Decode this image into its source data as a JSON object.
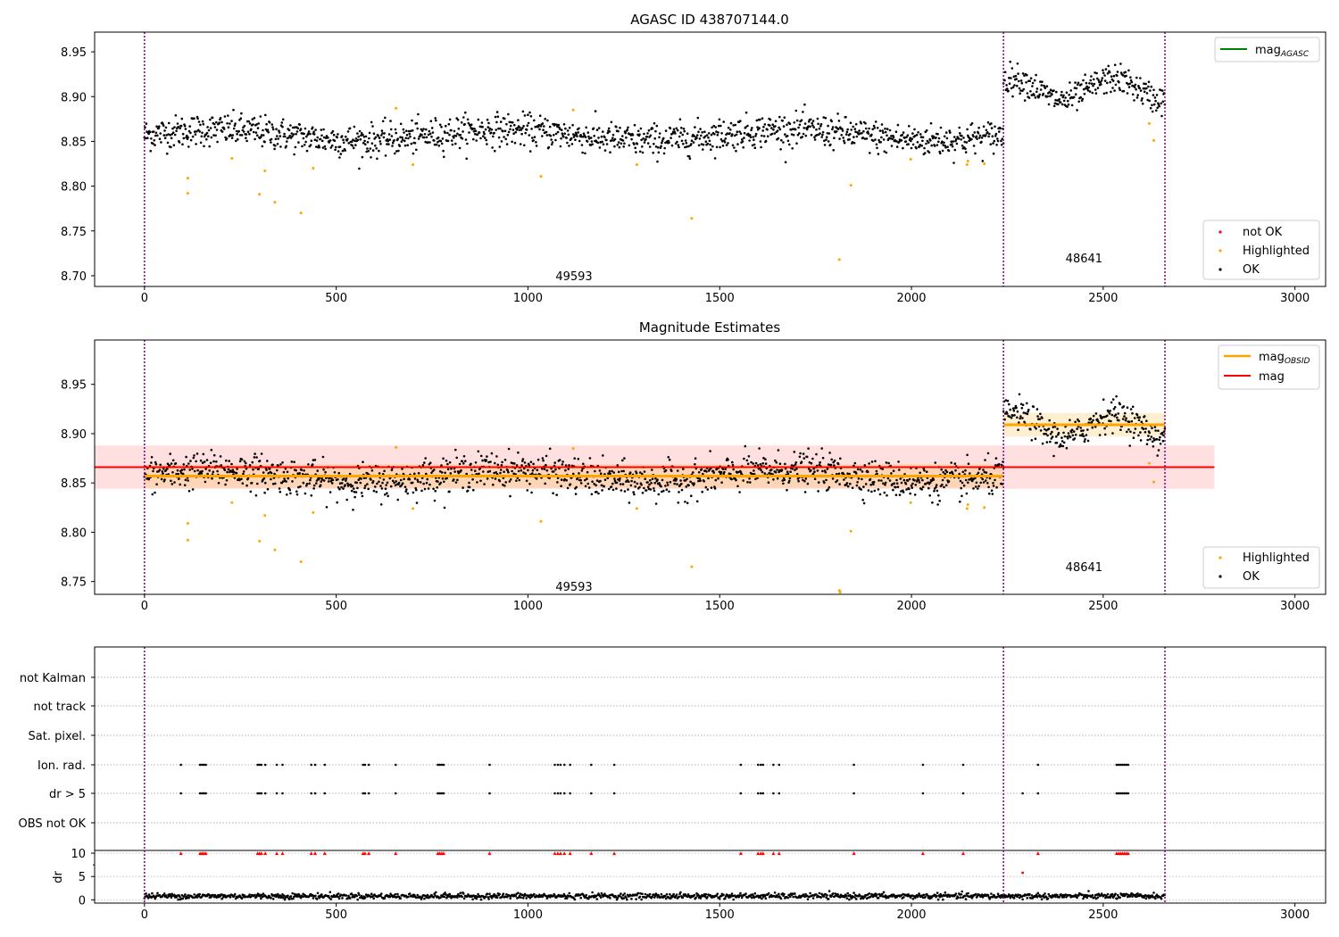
{
  "chart_data": [
    {
      "type": "scatter",
      "title": "AGASC ID 438707144.0",
      "xlim": [
        -130,
        3080
      ],
      "ylim": [
        8.688,
        8.972
      ],
      "xticks": [
        0,
        500,
        1000,
        1500,
        2000,
        2500,
        3000
      ],
      "yticks": [
        8.7,
        8.75,
        8.8,
        8.85,
        8.9,
        8.95
      ],
      "ytick_labels": [
        "8.70",
        "8.75",
        "8.80",
        "8.85",
        "8.90",
        "8.95"
      ],
      "obs_boundaries": [
        0,
        2240,
        2661
      ],
      "obs_labels": [
        {
          "text": "49593",
          "x": 1120,
          "y": 8.7
        },
        {
          "text": "48641",
          "x": 2450,
          "y": 8.72
        }
      ],
      "segments": [
        {
          "x_start": 0,
          "x_end": 2240,
          "mean": 8.857,
          "amp": 0.006,
          "noise": 0.009
        },
        {
          "x_start": 2240,
          "x_end": 2661,
          "mean": 8.908,
          "amp": 0.012,
          "noise": 0.008
        }
      ],
      "highlighted": [
        [
          113,
          8.809
        ],
        [
          113,
          8.792
        ],
        [
          228,
          8.831
        ],
        [
          300,
          8.791
        ],
        [
          314,
          8.817
        ],
        [
          340,
          8.782
        ],
        [
          408,
          8.77
        ],
        [
          440,
          8.82
        ],
        [
          656,
          8.887
        ],
        [
          700,
          8.824
        ],
        [
          1034,
          8.811
        ],
        [
          1118,
          8.885
        ],
        [
          1284,
          8.824
        ],
        [
          1427,
          8.764
        ],
        [
          1812,
          8.718
        ],
        [
          1842,
          8.801
        ],
        [
          1998,
          8.83
        ],
        [
          2145,
          8.824
        ],
        [
          2147,
          8.828
        ],
        [
          2190,
          8.825
        ],
        [
          2620,
          8.87
        ],
        [
          2632,
          8.851
        ]
      ],
      "legend_upper": [
        {
          "label": "mag",
          "sub": "AGASC",
          "color": "#008000"
        }
      ],
      "legend_lower": [
        {
          "label": "not OK",
          "color": "#ff0000"
        },
        {
          "label": "Highlighted",
          "color": "#ffa500"
        },
        {
          "label": "OK",
          "color": "#000000"
        }
      ]
    },
    {
      "type": "scatter",
      "title": "Magnitude Estimates",
      "xlim": [
        -130,
        3080
      ],
      "ylim": [
        8.737,
        8.995
      ],
      "xticks": [
        0,
        500,
        1000,
        1500,
        2000,
        2500,
        3000
      ],
      "yticks": [
        8.75,
        8.8,
        8.85,
        8.9,
        8.95
      ],
      "ytick_labels": [
        "8.75",
        "8.80",
        "8.85",
        "8.90",
        "8.95"
      ],
      "obs_boundaries": [
        0,
        2240,
        2661
      ],
      "obs_labels": [
        {
          "text": "49593",
          "x": 1120,
          "y": 8.745
        },
        {
          "text": "48641",
          "x": 2450,
          "y": 8.765
        }
      ],
      "mag": {
        "value": 8.866,
        "band": [
          8.844,
          8.888
        ],
        "x_range": [
          -130,
          2790
        ],
        "color": "#ff0000"
      },
      "mag_obsid": [
        {
          "x": [
            0,
            2240
          ],
          "value": 8.857,
          "band": [
            8.845,
            8.869
          ]
        },
        {
          "x": [
            2240,
            2661
          ],
          "value": 8.909,
          "band": [
            8.897,
            8.921
          ]
        }
      ],
      "highlighted": [
        [
          113,
          8.809
        ],
        [
          113,
          8.792
        ],
        [
          228,
          8.83
        ],
        [
          300,
          8.791
        ],
        [
          314,
          8.817
        ],
        [
          340,
          8.782
        ],
        [
          408,
          8.77
        ],
        [
          440,
          8.82
        ],
        [
          656,
          8.886
        ],
        [
          700,
          8.824
        ],
        [
          1034,
          8.811
        ],
        [
          1118,
          8.885
        ],
        [
          1284,
          8.824
        ],
        [
          1427,
          8.765
        ],
        [
          1812,
          8.741
        ],
        [
          1814,
          8.739
        ],
        [
          1842,
          8.801
        ],
        [
          1998,
          8.83
        ],
        [
          2145,
          8.824
        ],
        [
          2147,
          8.828
        ],
        [
          2190,
          8.825
        ],
        [
          2620,
          8.87
        ],
        [
          2632,
          8.851
        ]
      ],
      "legend_upper": [
        {
          "label": "mag",
          "sub": "OBSID",
          "color": "#ffa500"
        },
        {
          "label": "mag",
          "sub": "",
          "color": "#ff0000"
        }
      ],
      "legend_lower": [
        {
          "label": "Highlighted",
          "color": "#ffa500"
        },
        {
          "label": "OK",
          "color": "#000000"
        }
      ]
    },
    {
      "type": "scatter",
      "title": "",
      "xlim": [
        -130,
        3080
      ],
      "xticks": [
        0,
        500,
        1000,
        1500,
        2000,
        2500,
        3000
      ],
      "obs_boundaries": [
        0,
        2240,
        2661
      ],
      "flag_rows": [
        "not Kalman",
        "not track",
        "Sat. pixel.",
        "Ion. rad.",
        "dr > 5",
        "OBS not OK"
      ],
      "flag_events": {
        "Ion. rad.": [
          95,
          145,
          150,
          155,
          160,
          295,
          300,
          305,
          315,
          345,
          360,
          435,
          445,
          470,
          570,
          575,
          585,
          655,
          765,
          770,
          775,
          780,
          900,
          1070,
          1078,
          1085,
          1095,
          1110,
          1165,
          1225,
          1555,
          1600,
          1607,
          1613,
          1640,
          1655,
          1850,
          2030,
          2135,
          2330,
          2535,
          2540,
          2545,
          2550,
          2555,
          2560,
          2565
        ],
        "dr > 5": [
          95,
          145,
          150,
          155,
          160,
          295,
          300,
          305,
          315,
          345,
          360,
          435,
          445,
          470,
          570,
          575,
          585,
          655,
          765,
          770,
          775,
          780,
          900,
          1070,
          1078,
          1085,
          1095,
          1110,
          1165,
          1225,
          1555,
          1600,
          1607,
          1613,
          1640,
          1655,
          1850,
          2030,
          2135,
          2290,
          2330,
          2535,
          2540,
          2545,
          2550,
          2555,
          2560,
          2565
        ]
      },
      "dr_panel": {
        "ylabel": "dr",
        "ylim": [
          -0.7,
          10.4
        ],
        "yticks": [
          0,
          5,
          10
        ],
        "ytick_labels": [
          "0",
          "5",
          "10"
        ],
        "clip_value": 10,
        "outlier": [
          2290,
          5.8
        ],
        "baseline_mean": 0.8,
        "baseline_noise": 0.3
      }
    }
  ]
}
